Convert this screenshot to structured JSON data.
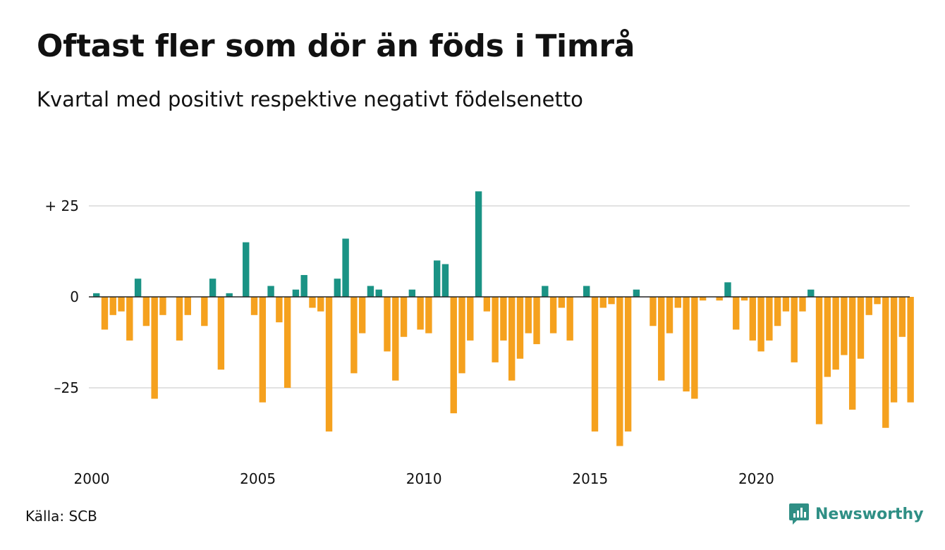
{
  "title": "Oftast fler som dör än föds i Timrå",
  "subtitle": "Kvartal med positivt respektive negativt födelsenetto",
  "source": "Källa: SCB",
  "brand": {
    "name": "Newsworthy",
    "icon": "newsworthy-logo-icon"
  },
  "colors": {
    "positive": "#1a9385",
    "negative": "#f5a11e",
    "grid": "#e2e2e2",
    "zero_line": "#222222"
  },
  "chart_data": {
    "type": "bar",
    "title": "Oftast fler som dör än föds i Timrå",
    "subtitle": "Kvartal med positivt respektive negativt födelsenetto",
    "xlabel": "",
    "ylabel": "",
    "x_start": 2000,
    "x_tick_labels": [
      "2000",
      "2005",
      "2010",
      "2015",
      "2020"
    ],
    "y_ticks": [
      25,
      0,
      -25
    ],
    "y_tick_labels": [
      "+ 25",
      "0",
      "–25"
    ],
    "ylim": [
      -43,
      30
    ],
    "grid": true,
    "series": [
      {
        "values": [
          1,
          -9,
          -5,
          -4,
          -12,
          5,
          -8,
          -28,
          -5,
          0,
          -12,
          -5,
          0,
          -8,
          5,
          -20,
          1,
          0,
          15,
          -5,
          -29,
          3,
          -7,
          -25,
          2,
          6,
          -3,
          -4,
          -37,
          5,
          16,
          -21,
          -10,
          3,
          2,
          -15,
          -23,
          -11,
          2,
          -9,
          -10,
          10,
          9,
          -32,
          -21,
          -12,
          29,
          -4,
          -18,
          -12,
          -23,
          -17,
          -10,
          -13,
          3,
          -10,
          -3,
          -12,
          0,
          3,
          -37,
          -3,
          -2,
          -41,
          -37,
          2,
          0,
          -8,
          -23,
          -10,
          -3,
          -26,
          -28,
          -1,
          0,
          -1,
          4,
          -9,
          -1,
          -12,
          -15,
          -12,
          -8,
          -4,
          -18,
          -4,
          2,
          -35,
          -22,
          -20,
          -16,
          -31,
          -17,
          -5,
          -2,
          -36,
          -29,
          -11,
          -29
        ]
      }
    ]
  }
}
